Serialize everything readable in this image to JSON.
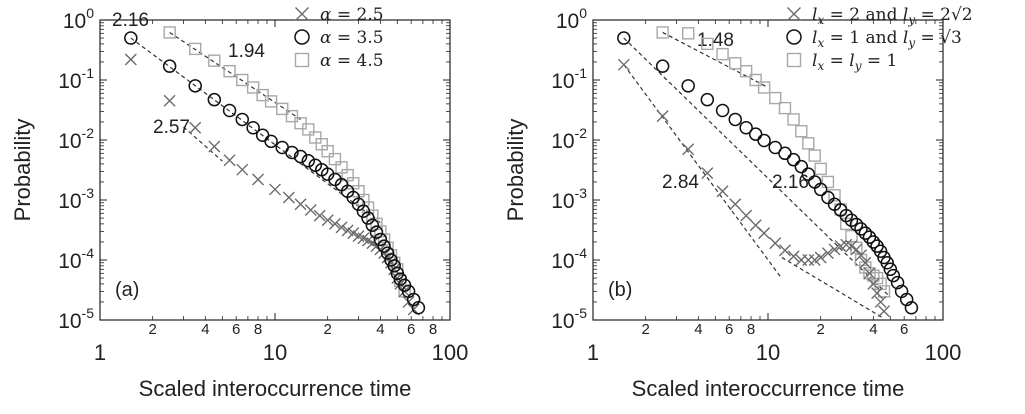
{
  "chart_data": [
    {
      "type": "scatter",
      "panel_label": "(a)",
      "xlabel": "Scaled interoccurrence time",
      "ylabel": "Probability",
      "xscale": "log",
      "yscale": "log",
      "xlim": [
        1,
        100
      ],
      "ylim": [
        1e-05,
        1
      ],
      "x_ticks_major": [
        "1",
        "10",
        "100"
      ],
      "x_ticks_minor": [
        "2",
        "4",
        "6",
        "8",
        "2",
        "4",
        "6",
        "8"
      ],
      "y_ticks": [
        {
          "base": "10",
          "exp": "0"
        },
        {
          "base": "10",
          "exp": "-1"
        },
        {
          "base": "10",
          "exp": "-2"
        },
        {
          "base": "10",
          "exp": "-3"
        },
        {
          "base": "10",
          "exp": "-4"
        },
        {
          "base": "10",
          "exp": "-5"
        }
      ],
      "legend_position": "top-right",
      "grid": false,
      "series": [
        {
          "name": "α = 2.5",
          "marker": "x",
          "color": "#6b6b6b",
          "x": [
            1.5,
            2.5,
            3.5,
            4.5,
            5.5,
            6.5,
            8,
            10,
            12,
            14,
            16,
            18,
            20,
            22,
            24,
            26,
            28,
            30,
            32,
            34,
            36,
            38,
            40,
            42,
            44,
            46,
            48,
            50,
            52,
            55,
            58,
            62
          ],
          "y": [
            0.22,
            0.045,
            0.016,
            0.0078,
            0.0046,
            0.0032,
            0.0022,
            0.0015,
            0.0011,
            0.00085,
            0.00068,
            0.00055,
            0.00046,
            0.0004,
            0.00035,
            0.00031,
            0.00028,
            0.00025,
            0.00023,
            0.00021,
            0.00019,
            0.00017,
            0.00015,
            0.00013,
            0.00011,
            9e-05,
            7e-05,
            5e-05,
            4e-05,
            3e-05,
            2e-05,
            1.5e-05
          ]
        },
        {
          "name": "α = 3.5",
          "marker": "o",
          "color": "#111111",
          "x": [
            1.5,
            2.5,
            3.5,
            4.5,
            5.5,
            6.5,
            7.5,
            8.5,
            9.5,
            11,
            12.5,
            14,
            15.5,
            17,
            18.5,
            20,
            22,
            24,
            26,
            28,
            30,
            32,
            34,
            36,
            38,
            40,
            42,
            44,
            46,
            48,
            50,
            52,
            55,
            58,
            62,
            66
          ],
          "y": [
            0.5,
            0.17,
            0.08,
            0.047,
            0.031,
            0.022,
            0.016,
            0.012,
            0.0095,
            0.0075,
            0.0062,
            0.0053,
            0.0045,
            0.0038,
            0.0032,
            0.0027,
            0.0022,
            0.0018,
            0.0014,
            0.0011,
            0.00085,
            0.00065,
            0.0005,
            0.00038,
            0.00029,
            0.00022,
            0.00017,
            0.00013,
            0.0001,
            8e-05,
            6e-05,
            4.8e-05,
            3.8e-05,
            3e-05,
            2.2e-05,
            1.6e-05
          ]
        },
        {
          "name": "α = 4.5",
          "marker": "s",
          "color": "#a8a8a8",
          "x": [
            2.5,
            3.5,
            4.5,
            5.5,
            6.5,
            7.5,
            8.5,
            9.5,
            11,
            12.5,
            14,
            15.5,
            17,
            18.5,
            20,
            22,
            24,
            26,
            28,
            30,
            32,
            34,
            36,
            38,
            40,
            42,
            44,
            46,
            48,
            50,
            52,
            55
          ],
          "y": [
            0.62,
            0.33,
            0.21,
            0.14,
            0.1,
            0.075,
            0.056,
            0.044,
            0.033,
            0.025,
            0.019,
            0.015,
            0.011,
            0.0085,
            0.0065,
            0.0048,
            0.0035,
            0.0026,
            0.0019,
            0.0014,
            0.001,
            0.00075,
            0.00055,
            0.0004,
            0.0003,
            0.00022,
            0.00016,
            0.00012,
            9e-05,
            7e-05,
            4.5e-05,
            3e-05
          ]
        }
      ],
      "fit_lines": [
        {
          "label": "2.16",
          "x": [
            1.5,
            40
          ],
          "y": [
            0.5,
            0.00042
          ]
        },
        {
          "label": "1.94",
          "x": [
            2.5,
            14
          ],
          "y": [
            0.62,
            0.022
          ]
        },
        {
          "label": "2.57",
          "x": [
            3.0,
            5.0
          ],
          "y": [
            0.0165,
            0.00445
          ]
        }
      ]
    },
    {
      "type": "scatter",
      "panel_label": "(b)",
      "xlabel": "Scaled interoccurrence time",
      "ylabel": "Probability",
      "xscale": "log",
      "yscale": "log",
      "xlim": [
        1,
        100
      ],
      "ylim": [
        1e-05,
        1
      ],
      "x_ticks_major": [
        "1",
        "10",
        "100"
      ],
      "x_ticks_minor": [
        "2",
        "4",
        "6",
        "8",
        "2",
        "4",
        "6"
      ],
      "y_ticks": [
        {
          "base": "10",
          "exp": "0"
        },
        {
          "base": "10",
          "exp": "-1"
        },
        {
          "base": "10",
          "exp": "-2"
        },
        {
          "base": "10",
          "exp": "-3"
        },
        {
          "base": "10",
          "exp": "-4"
        },
        {
          "base": "10",
          "exp": "-5"
        }
      ],
      "legend_position": "top-right",
      "grid": false,
      "series": [
        {
          "name": "l_x = 2 and l_y = 2√2",
          "marker": "x",
          "color": "#6b6b6b",
          "x": [
            1.5,
            2.5,
            3.5,
            4.5,
            5.5,
            6.5,
            7.5,
            8.5,
            9.5,
            11,
            12.5,
            14,
            15.5,
            17,
            18.5,
            20,
            22,
            24,
            26,
            28,
            30,
            32,
            34,
            36,
            38,
            40,
            42,
            44,
            46
          ],
          "y": [
            0.18,
            0.025,
            0.007,
            0.0028,
            0.0014,
            0.00085,
            0.00055,
            0.00038,
            0.00028,
            0.00019,
            0.000145,
            0.000115,
            0.0001,
            0.0001,
            0.0001,
            0.00011,
            0.00013,
            0.00015,
            0.00017,
            0.00018,
            0.00017,
            0.00015,
            0.00012,
            9e-05,
            6e-05,
            4e-05,
            2.8e-05,
            2e-05,
            1.4e-05
          ]
        },
        {
          "name": "l_x = 1 and l_y = √3",
          "marker": "o",
          "color": "#111111",
          "x": [
            1.5,
            2.5,
            3.5,
            4.5,
            5.5,
            6.5,
            7.5,
            8.5,
            9.5,
            11,
            12.5,
            14,
            15.5,
            17,
            18.5,
            20,
            22,
            24,
            26,
            28,
            30,
            32,
            34,
            36,
            38,
            40,
            42,
            44,
            46,
            48,
            50,
            52,
            55,
            58,
            62,
            66
          ],
          "y": [
            0.5,
            0.17,
            0.08,
            0.047,
            0.031,
            0.022,
            0.016,
            0.0125,
            0.0098,
            0.0075,
            0.006,
            0.0047,
            0.0036,
            0.0027,
            0.002,
            0.0015,
            0.0011,
            0.00085,
            0.00068,
            0.00055,
            0.00046,
            0.00039,
            0.00033,
            0.00028,
            0.00024,
            0.0002,
            0.00017,
            0.00014,
            0.00011,
            9e-05,
            7e-05,
            5.5e-05,
            4.2e-05,
            3e-05,
            2.2e-05,
            1.6e-05
          ]
        },
        {
          "name": "l_x = l_y = 1",
          "marker": "s",
          "color": "#a8a8a8",
          "x": [
            2.5,
            3.5,
            4.5,
            5.5,
            6.5,
            7.5,
            8.5,
            9.5,
            11,
            12.5,
            14,
            15.5,
            17,
            18.5,
            20,
            22,
            24,
            26,
            28,
            30,
            32,
            34,
            36,
            38,
            40,
            42,
            44,
            46
          ],
          "y": [
            0.62,
            0.6,
            0.4,
            0.27,
            0.19,
            0.14,
            0.1,
            0.075,
            0.05,
            0.034,
            0.022,
            0.014,
            0.0088,
            0.0055,
            0.0033,
            0.002,
            0.0012,
            0.0007,
            0.0004,
            0.00025,
            0.00016,
            0.0001,
            7.5e-05,
            6e-05,
            5.5e-05,
            5e-05,
            4e-05,
            3e-05
          ]
        }
      ],
      "fit_lines": [
        {
          "label": "1.48",
          "x": [
            2.5,
            10
          ],
          "y": [
            0.62,
            0.075
          ]
        },
        {
          "label": "",
          "x": [
            1.5,
            50
          ],
          "y": [
            0.5,
            2.4e-05
          ]
        },
        {
          "label": "2.84",
          "x": [
            1.5,
            12
          ],
          "y": [
            0.18,
            4.9e-05
          ]
        },
        {
          "label": "2.16",
          "x": [
            12,
            45
          ],
          "y": [
            0.00011,
            1.1e-05
          ]
        }
      ]
    }
  ],
  "legend_a": [
    {
      "marker": "x",
      "color": "#6b6b6b",
      "prefix": "α = ",
      "value": "2.5"
    },
    {
      "marker": "o",
      "color": "#111111",
      "prefix": "α = ",
      "value": "3.5"
    },
    {
      "marker": "s",
      "color": "#a8a8a8",
      "prefix": "α = ",
      "value": "4.5"
    }
  ],
  "legend_b": [
    {
      "marker": "x",
      "color": "#6b6b6b",
      "parts": [
        "l",
        "x",
        " = 2 and ",
        "l",
        "y",
        " = 2√2"
      ]
    },
    {
      "marker": "o",
      "color": "#111111",
      "parts": [
        "l",
        "x",
        " = 1 and ",
        "l",
        "y",
        " = √3"
      ]
    },
    {
      "marker": "s",
      "color": "#a8a8a8",
      "parts": [
        "l",
        "x",
        " = ",
        "l",
        "y",
        " = 1"
      ]
    }
  ]
}
